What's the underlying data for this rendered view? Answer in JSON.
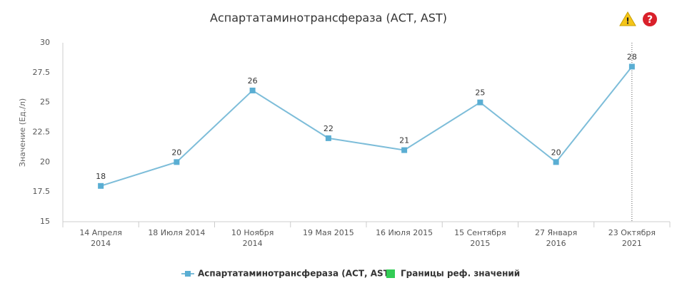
{
  "chart_data": {
    "type": "line",
    "title": "Аспартатаминотрансфераза (АСТ, AST)",
    "y_label": "Значение (Ед./л)",
    "categories": [
      "14 Апреля 2014",
      "18 Июля 2014",
      "10 Ноября 2014",
      "19 Мая 2015",
      "16 Июля 2015",
      "15 Сентября 2015",
      "27 Января 2016",
      "23 Октября 2021"
    ],
    "series": [
      {
        "name": "Аспартатаминотрансфераза (АСТ, AST)",
        "color": "#5aaed3",
        "values": [
          18,
          20,
          26,
          22,
          21,
          25,
          20,
          28
        ]
      }
    ],
    "reference_legend": {
      "name": "Границы реф. значений",
      "color": "#33cc55"
    },
    "ylim": [
      15,
      30
    ],
    "yticks": [
      15,
      17.5,
      20,
      22.5,
      25,
      27.5,
      30
    ],
    "grid": false
  }
}
